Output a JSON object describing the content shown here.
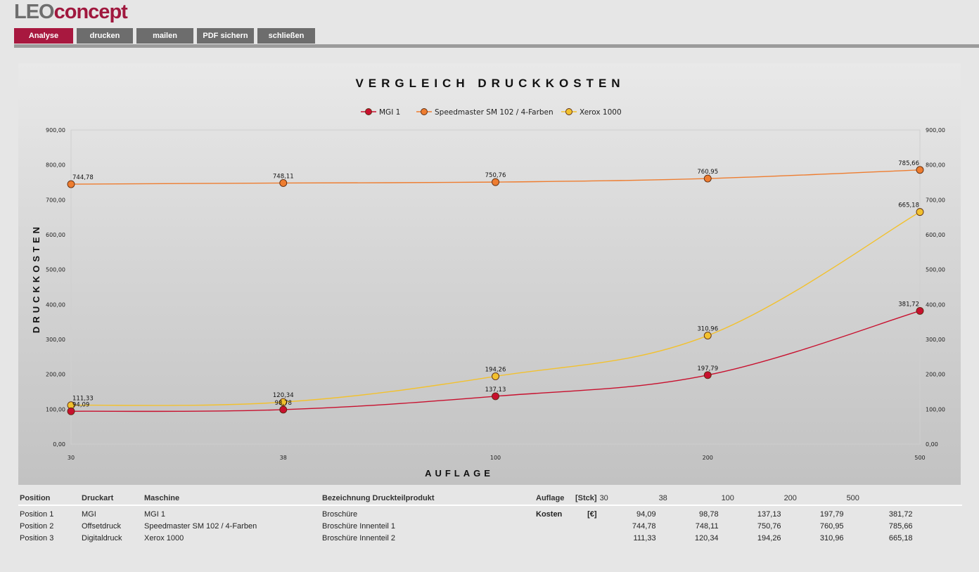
{
  "brand": {
    "part1": "LEO",
    "part2": "concept"
  },
  "nav": {
    "items": [
      {
        "label": "Analyse",
        "active": true
      },
      {
        "label": "drucken",
        "active": false
      },
      {
        "label": "mailen",
        "active": false
      },
      {
        "label": "PDF sichern",
        "active": false
      },
      {
        "label": "schließen",
        "active": false
      }
    ]
  },
  "chart_data": {
    "type": "line",
    "title": "VERGLEICH DRUCKKOSTEN",
    "xlabel": "AUFLAGE",
    "ylabel": "DRUCKKOSTEN",
    "categories": [
      "30",
      "38",
      "100",
      "200",
      "500"
    ],
    "ylim": [
      0,
      900
    ],
    "yticks": [
      "0,00",
      "100,00",
      "200,00",
      "300,00",
      "400,00",
      "500,00",
      "600,00",
      "700,00",
      "800,00",
      "900,00"
    ],
    "legend_position": "top",
    "series": [
      {
        "name": "MGI 1",
        "color": "#c8102e",
        "values": [
          94.09,
          98.78,
          137.13,
          197.79,
          381.72
        ],
        "labels": [
          "94,09",
          "98,78",
          "137,13",
          "197,79",
          "381,72"
        ]
      },
      {
        "name": "Speedmaster SM 102 / 4-Farben",
        "color": "#ee7d30",
        "values": [
          744.78,
          748.11,
          750.76,
          760.95,
          785.66
        ],
        "labels": [
          "744,78",
          "748,11",
          "750,76",
          "760,95",
          "785,66"
        ]
      },
      {
        "name": "Xerox 1000",
        "color": "#f2c12e",
        "values": [
          111.33,
          120.34,
          194.26,
          310.96,
          665.18
        ],
        "labels": [
          "111,33",
          "120,34",
          "194,26",
          "310,96",
          "665,18"
        ]
      }
    ]
  },
  "table": {
    "headers": {
      "position": "Position",
      "druckart": "Druckart",
      "maschine": "Maschine",
      "bezeichnung": "Bezeichnung Druckteilprodukt",
      "auflage": "Auflage",
      "unit": "[Stck]",
      "quantities": [
        "30",
        "38",
        "100",
        "200",
        "500"
      ]
    },
    "cost_label": "Kosten",
    "cost_unit": "[€]",
    "rows": [
      {
        "position": "Position 1",
        "druckart": "MGI",
        "maschine": "MGI 1",
        "bezeichnung": "Broschüre",
        "costs": [
          "94,09",
          "98,78",
          "137,13",
          "197,79",
          "381,72"
        ]
      },
      {
        "position": "Position 2",
        "druckart": "Offsetdruck",
        "maschine": "Speedmaster SM 102 / 4-Farben",
        "bezeichnung": "Broschüre Innenteil 1",
        "costs": [
          "744,78",
          "748,11",
          "750,76",
          "760,95",
          "785,66"
        ]
      },
      {
        "position": "Position 3",
        "druckart": "Digitaldruck",
        "maschine": "Xerox 1000",
        "bezeichnung": "Broschüre Innenteil 2",
        "costs": [
          "111,33",
          "120,34",
          "194,26",
          "310,96",
          "665,18"
        ]
      }
    ]
  }
}
